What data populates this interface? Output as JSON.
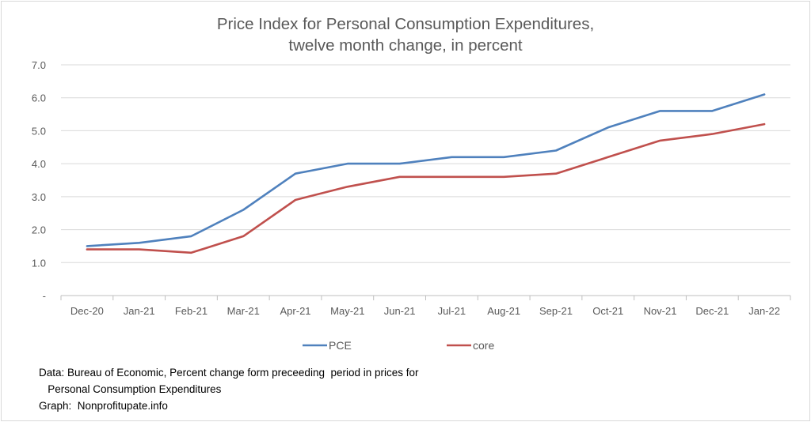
{
  "chart_data": {
    "type": "line",
    "title": "Price Index for Personal Consumption Expenditures,",
    "subtitle": "twelve month change, in percent",
    "categories": [
      "Dec-20",
      "Jan-21",
      "Feb-21",
      "Mar-21",
      "Apr-21",
      "May-21",
      "Jun-21",
      "Jul-21",
      "Aug-21",
      "Sep-21",
      "Oct-21",
      "Nov-21",
      "Dec-21",
      "Jan-22"
    ],
    "series": [
      {
        "name": "PCE",
        "color": "#4f81bd",
        "values": [
          1.5,
          1.6,
          1.8,
          2.6,
          3.7,
          4.0,
          4.0,
          4.2,
          4.2,
          4.4,
          5.1,
          5.6,
          5.6,
          6.1
        ]
      },
      {
        "name": "core",
        "color": "#c0504d",
        "values": [
          1.4,
          1.4,
          1.3,
          1.8,
          2.9,
          3.3,
          3.6,
          3.6,
          3.6,
          3.7,
          4.2,
          4.7,
          4.9,
          5.2
        ]
      }
    ],
    "ylim": [
      0,
      7
    ],
    "y_ticks": [
      "-",
      "1.0",
      "2.0",
      "3.0",
      "4.0",
      "5.0",
      "6.0",
      "7.0"
    ],
    "grid": true,
    "legend": "bottom-center"
  },
  "notes": {
    "line1": "Data: Bureau of Economic, Percent change form preceeding  period in prices for",
    "line2": "   Personal Consumption Expenditures",
    "line3": "Graph:  Nonprofitupate.info"
  }
}
